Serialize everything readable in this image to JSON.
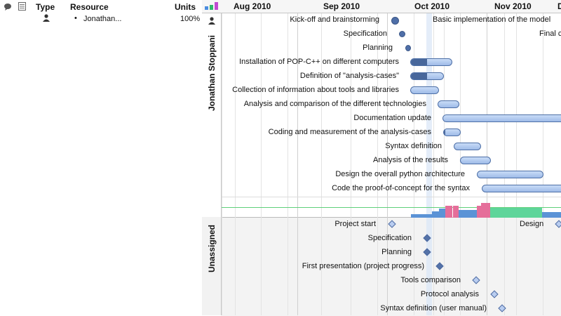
{
  "table": {
    "headers": {
      "type": "Type",
      "resource": "Resource",
      "units": "Units"
    },
    "rows": [
      {
        "resource": "Jonathan...",
        "units": "100%"
      }
    ]
  },
  "timeline": {
    "months": [
      "Aug 2010",
      "Sep 2010",
      "Oct 2010",
      "Nov 2010",
      "D"
    ]
  },
  "resource_group": {
    "name": "Jonathan Stoppani",
    "tasks": [
      "Kick-off and brainstorming",
      "Specification",
      "Planning",
      "Installation of POP-C++ on different computers",
      "Definition of \"analysis-cases\"",
      "Collection of information about tools and libraries",
      "Analysis and comparison of the different technologies",
      "Documentation update",
      "Coding and measurement of the analysis-cases",
      "Syntax definition",
      "Analysis of the results",
      "Design the overall python architecture",
      "Code the proof-of-concept for the syntax"
    ],
    "extra_labels": [
      "Basic implementation of the model",
      "Final c"
    ]
  },
  "unassigned_group": {
    "name": "Unassigned",
    "milestones": [
      "Project start",
      "Specification",
      "Planning",
      "First presentation (project progress)",
      "Tools comparison",
      "Protocol analysis",
      "Syntax definition (user manual)"
    ],
    "extra_labels": [
      "Design"
    ]
  },
  "progress": {
    "installation": 0.4,
    "definition": 0.5
  }
}
